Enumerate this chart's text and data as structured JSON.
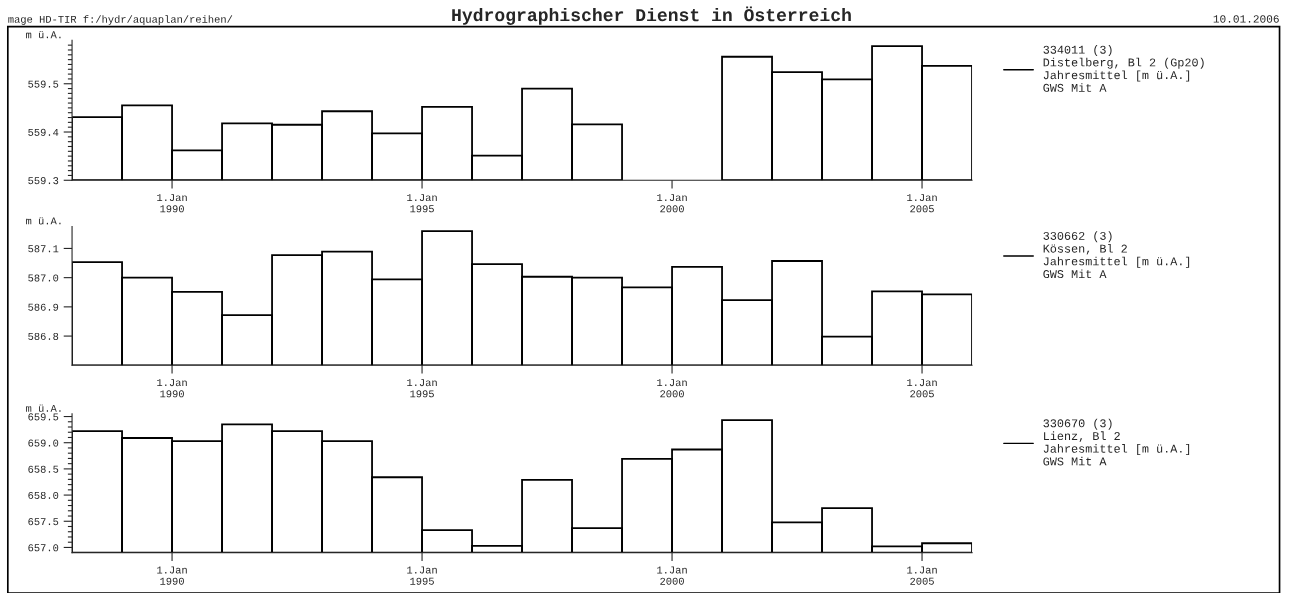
{
  "chart_data": [
    {
      "type": "bar",
      "title": "Hydrographischer Dienst in Österreich",
      "annotations": [
        "mage HD-TIR f:/hydr/aquaplan/reihen/",
        "10.01.2006"
      ],
      "ylabel": "m ü.A.",
      "x": [
        "1988-07",
        "1989-07",
        "1990-07",
        "1991-07",
        "1992-07",
        "1993-07",
        "1994-07",
        "1995-07",
        "1996-07",
        "1997-07",
        "1998-07",
        "1999-07",
        "2000-07",
        "2001-07",
        "2002-07",
        "2003-07",
        "2004-07",
        "2005-07"
      ],
      "series": [
        {
          "name": "334011 (3)\nDistelberg, Bl 2 (Gp20)\nJahresmittel [m ü.A.]\nGWS Mit A",
          "color": "#000000",
          "values": [
            559.431,
            559.455,
            559.362,
            559.418,
            559.415,
            559.443,
            559.397,
            559.452,
            559.351,
            559.49,
            559.416,
            null,
            null,
            559.556,
            559.524,
            559.509,
            559.578,
            559.537
          ]
        }
      ],
      "xlim": [
        "1988",
        "2006"
      ],
      "xticks": [
        {
          "value": "1990",
          "label": "1.Jan\n1990"
        },
        {
          "value": "1995",
          "label": "1.Jan\n1995"
        },
        {
          "value": "2000",
          "label": "1.Jan\n2000"
        },
        {
          "value": "2005",
          "label": "1.Jan\n2005"
        }
      ],
      "ylim": [
        559.3,
        559.59
      ],
      "yticks": [
        {
          "value": 559.3,
          "label": "559.3"
        },
        {
          "value": 559.31,
          "label": null
        },
        {
          "value": 559.32,
          "label": null
        },
        {
          "value": 559.33,
          "label": null
        },
        {
          "value": 559.34,
          "label": null
        },
        {
          "value": 559.35,
          "label": null
        },
        {
          "value": 559.36,
          "label": null
        },
        {
          "value": 559.37,
          "label": null
        },
        {
          "value": 559.38,
          "label": null
        },
        {
          "value": 559.39,
          "label": null
        },
        {
          "value": 559.4,
          "label": "559.4"
        },
        {
          "value": 559.41,
          "label": null
        },
        {
          "value": 559.42,
          "label": null
        },
        {
          "value": 559.43,
          "label": null
        },
        {
          "value": 559.44,
          "label": null
        },
        {
          "value": 559.45,
          "label": null
        },
        {
          "value": 559.46,
          "label": null
        },
        {
          "value": 559.47,
          "label": null
        },
        {
          "value": 559.48,
          "label": null
        },
        {
          "value": 559.49,
          "label": null
        },
        {
          "value": 559.5,
          "label": "559.5"
        },
        {
          "value": 559.51,
          "label": null
        },
        {
          "value": 559.52,
          "label": null
        },
        {
          "value": 559.53,
          "label": null
        },
        {
          "value": 559.54,
          "label": null
        },
        {
          "value": 559.55,
          "label": null
        },
        {
          "value": 559.56,
          "label": null
        },
        {
          "value": 559.57,
          "label": null
        },
        {
          "value": 559.58,
          "label": null
        }
      ],
      "grid": false,
      "legend": "top right"
    },
    {
      "type": "bar",
      "ylabel": "m ü.A.",
      "x": [
        "1988-07",
        "1989-07",
        "1990-07",
        "1991-07",
        "1992-07",
        "1993-07",
        "1994-07",
        "1995-07",
        "1996-07",
        "1997-07",
        "1998-07",
        "1999-07",
        "2000-07",
        "2001-07",
        "2002-07",
        "2003-07",
        "2004-07",
        "2005-07"
      ],
      "series": [
        {
          "name": "330662 (3)\nKössen, Bl 2\nJahresmittel [m ü.A.]\nGWS Mit A",
          "color": "#000000",
          "values": [
            587.053,
            587.0,
            586.951,
            586.872,
            587.077,
            587.089,
            586.994,
            587.159,
            587.046,
            587.003,
            587.0,
            586.967,
            587.037,
            586.923,
            587.057,
            586.798,
            586.953,
            586.943
          ]
        }
      ],
      "xlim": [
        "1988",
        "2006"
      ],
      "xticks": [
        {
          "value": "1990",
          "label": "1.Jan\n1990"
        },
        {
          "value": "1995",
          "label": "1.Jan\n1995"
        },
        {
          "value": "2000",
          "label": "1.Jan\n2000"
        },
        {
          "value": "2005",
          "label": "1.Jan\n2005"
        }
      ],
      "ylim": [
        586.7,
        587.175
      ],
      "yticks": [
        {
          "value": 586.8,
          "label": "586.8"
        },
        {
          "value": 586.9,
          "label": "586.9"
        },
        {
          "value": 587.0,
          "label": "587.0"
        },
        {
          "value": 587.1,
          "label": "587.1"
        }
      ],
      "grid": false,
      "legend": "top right"
    },
    {
      "type": "bar",
      "ylabel": "m ü.A.",
      "x": [
        "1988-07",
        "1989-07",
        "1990-07",
        "1991-07",
        "1992-07",
        "1993-07",
        "1994-07",
        "1995-07",
        "1996-07",
        "1997-07",
        "1998-07",
        "1999-07",
        "2000-07",
        "2001-07",
        "2002-07",
        "2003-07",
        "2004-07",
        "2005-07"
      ],
      "series": [
        {
          "name": "330670 (3)\nLienz, Bl 2\nJahresmittel [m ü.A.]\nGWS Mit A",
          "color": "#000000",
          "values": [
            659.22,
            659.09,
            659.03,
            659.35,
            659.22,
            659.03,
            658.34,
            657.33,
            657.03,
            658.29,
            657.37,
            658.69,
            658.87,
            659.43,
            657.48,
            657.75,
            657.02,
            657.08
          ]
        }
      ],
      "xlim": [
        "1988",
        "2006"
      ],
      "xticks": [
        {
          "value": "1990",
          "label": "1.Jan\n1990"
        },
        {
          "value": "1995",
          "label": "1.Jan\n1995"
        },
        {
          "value": "2000",
          "label": "1.Jan\n2000"
        },
        {
          "value": "2005",
          "label": "1.Jan\n2005"
        }
      ],
      "ylim": [
        656.9,
        659.55
      ],
      "yticks": [
        {
          "value": 657.0,
          "label": "657.0"
        },
        {
          "value": 657.1,
          "label": null
        },
        {
          "value": 657.2,
          "label": null
        },
        {
          "value": 657.3,
          "label": null
        },
        {
          "value": 657.4,
          "label": null
        },
        {
          "value": 657.5,
          "label": "657.5"
        },
        {
          "value": 657.6,
          "label": null
        },
        {
          "value": 657.7,
          "label": null
        },
        {
          "value": 657.8,
          "label": null
        },
        {
          "value": 657.9,
          "label": null
        },
        {
          "value": 658.0,
          "label": "658.0"
        },
        {
          "value": 658.1,
          "label": null
        },
        {
          "value": 658.2,
          "label": null
        },
        {
          "value": 658.3,
          "label": null
        },
        {
          "value": 658.4,
          "label": null
        },
        {
          "value": 658.5,
          "label": "658.5"
        },
        {
          "value": 658.6,
          "label": null
        },
        {
          "value": 658.7,
          "label": null
        },
        {
          "value": 658.8,
          "label": null
        },
        {
          "value": 658.9,
          "label": null
        },
        {
          "value": 659.0,
          "label": "659.0"
        },
        {
          "value": 659.1,
          "label": null
        },
        {
          "value": 659.2,
          "label": null
        },
        {
          "value": 659.3,
          "label": null
        },
        {
          "value": 659.4,
          "label": null
        },
        {
          "value": 659.5,
          "label": "659.5"
        }
      ],
      "grid": false,
      "legend": "top right"
    }
  ]
}
